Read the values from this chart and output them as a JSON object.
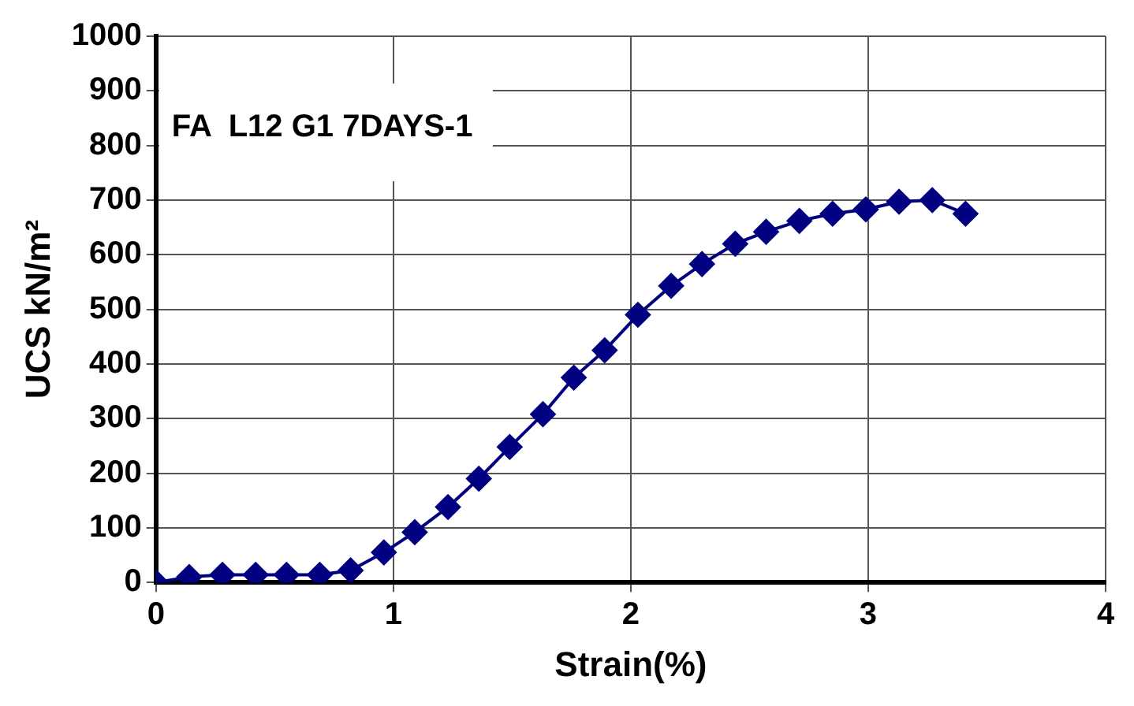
{
  "chart_data": {
    "type": "line",
    "xlabel": "Strain(%)",
    "ylabel": "UCS kN/m²",
    "annotations": [
      "FA  L12 G1 7DAYS-1"
    ],
    "x": [
      0,
      0.14,
      0.28,
      0.42,
      0.55,
      0.69,
      0.82,
      0.96,
      1.09,
      1.23,
      1.36,
      1.49,
      1.63,
      1.76,
      1.89,
      2.03,
      2.17,
      2.3,
      2.44,
      2.57,
      2.71,
      2.85,
      2.99,
      3.13,
      3.27,
      3.41
    ],
    "series": [
      {
        "color": "#000080",
        "values": [
          0,
          10,
          14,
          14,
          14,
          14,
          22,
          55,
          92,
          138,
          190,
          248,
          308,
          375,
          425,
          490,
          543,
          583,
          620,
          642,
          662,
          675,
          683,
          697,
          700,
          675
        ]
      }
    ],
    "xlim": [
      0,
      4
    ],
    "xticks": [
      0,
      1,
      2,
      3,
      4
    ],
    "ylim": [
      0,
      1000
    ],
    "yticks": [
      0,
      100,
      200,
      300,
      400,
      500,
      600,
      700,
      800,
      900,
      1000
    ],
    "grid": true,
    "marker": "diamond",
    "line_style": "solid",
    "legend": false
  }
}
